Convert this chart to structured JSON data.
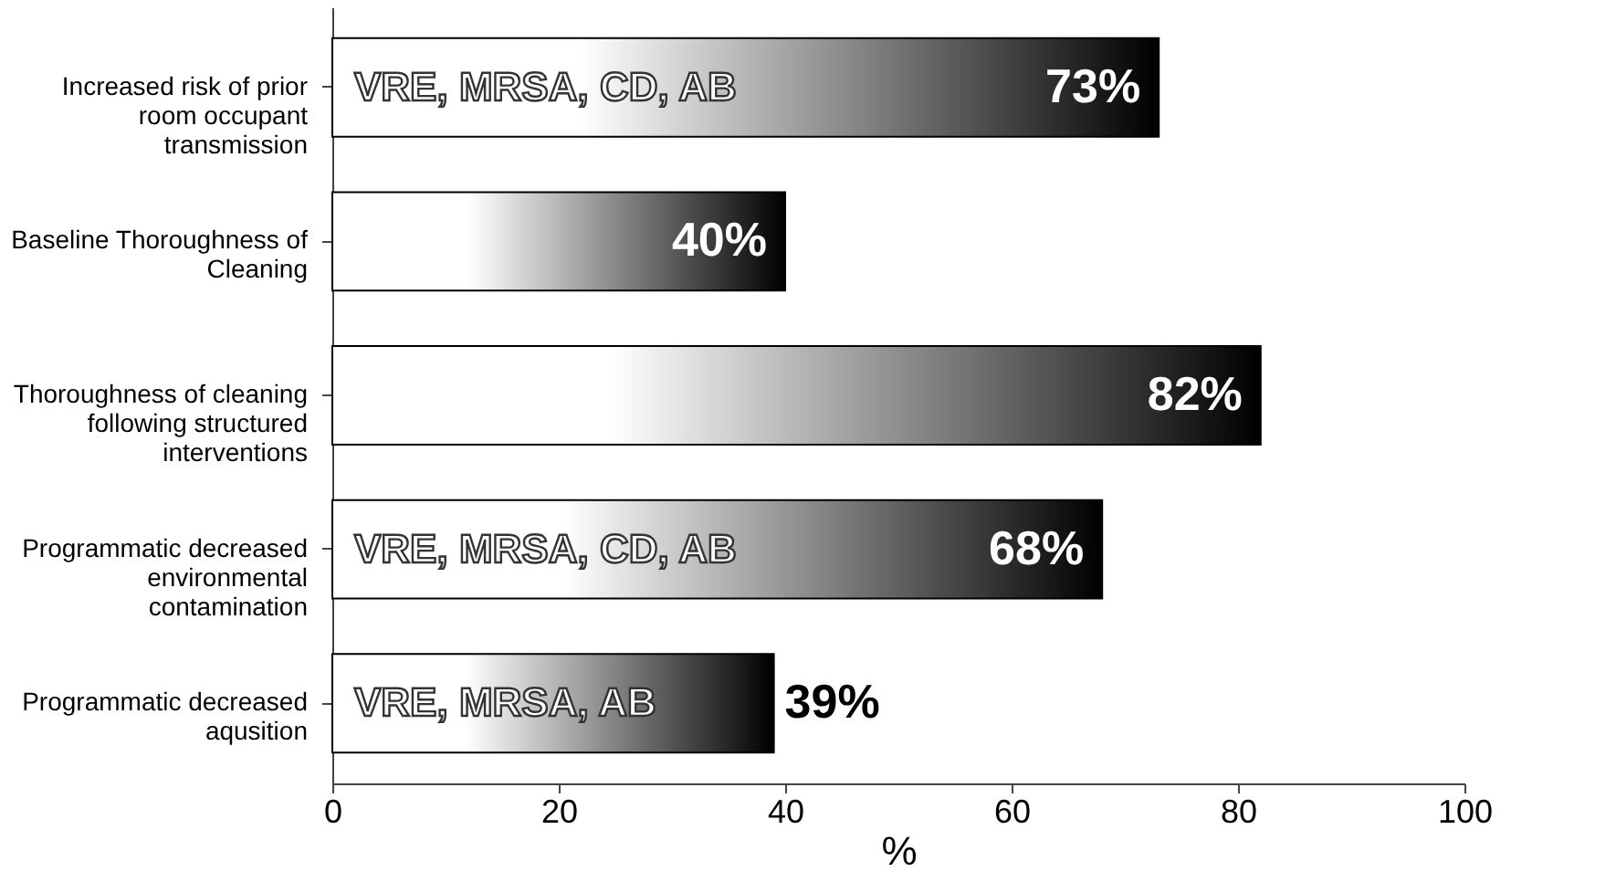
{
  "chart_data": {
    "type": "bar",
    "orientation": "horizontal",
    "xlabel": "%",
    "categories": [
      "Increased risk of prior room occupant transmission",
      "Baseline Thoroughness of Cleaning",
      "Thoroughness of cleaning following structured interventions",
      "Programmatic decreased environmental contamination",
      "Programmatic decreased aqusition"
    ],
    "values": [
      73,
      40,
      82,
      68,
      39
    ],
    "value_labels": [
      "73%",
      "40%",
      "82%",
      "68%",
      "39%"
    ],
    "color": "#000000",
    "xlim": [
      0,
      100
    ],
    "xticks": [
      0,
      20,
      40,
      60,
      80,
      100
    ],
    "annotations": [
      "VRE, MRSA, CD, AB",
      "VRE, MRSA, CD, AB",
      "VRE, MRSA, AB"
    ]
  }
}
